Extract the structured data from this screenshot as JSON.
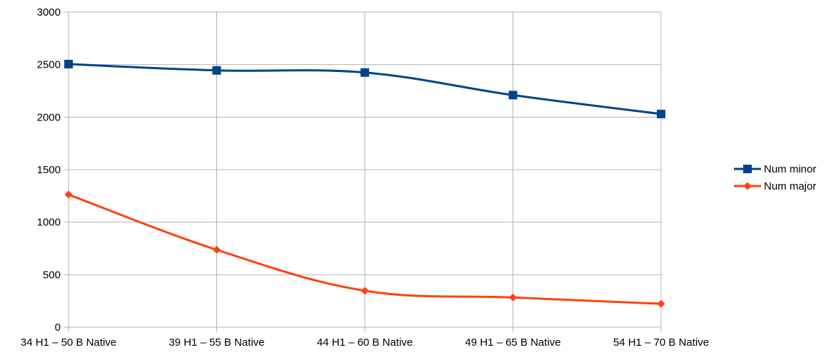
{
  "chart_data": {
    "type": "line",
    "smooth": true,
    "categories": [
      "34 H1 – 50 B Native",
      "39 H1 – 55 B Native",
      "44 H1 – 60 B Native",
      "49 H1 – 65 B Native",
      "54 H1 – 70 B Native"
    ],
    "series": [
      {
        "name": "Num minor",
        "values": [
          2505,
          2445,
          2425,
          2210,
          2030
        ],
        "color": "#004586",
        "marker": "square"
      },
      {
        "name": "Num major",
        "values": [
          1263,
          737,
          347,
          283,
          223
        ],
        "color": "#ff420e",
        "marker": "diamond"
      }
    ],
    "ylim": [
      0,
      3000
    ],
    "yticks": [
      "0",
      "500",
      "1000",
      "1500",
      "2000",
      "2500",
      "3000"
    ],
    "grid": true,
    "legend_position": "right"
  }
}
